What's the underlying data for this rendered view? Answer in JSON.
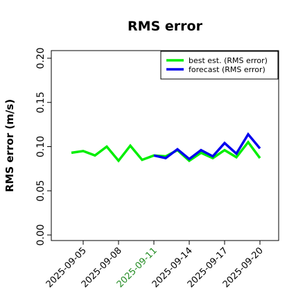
{
  "chart_data": {
    "type": "line",
    "title": "RMS error",
    "xlabel": "",
    "ylabel": "RMS error (m/s)",
    "ylim": [
      0,
      0.21
    ],
    "yticks": [
      "0.00",
      "0.05",
      "0.10",
      "0.15",
      "0.20"
    ],
    "xticks": [
      "2025-09-05",
      "2025-09-08",
      "2025-09-11",
      "2025-09-14",
      "2025-09-17",
      "2025-09-20"
    ],
    "highlighted_xtick": "2025-09-11",
    "highlight_color": "#228B22",
    "grid": false,
    "legend_position": "top-right",
    "series": [
      {
        "name": "best est. (RMS error)",
        "color": "#00ee00",
        "x": [
          "2025-09-04",
          "2025-09-05",
          "2025-09-06",
          "2025-09-07",
          "2025-09-08",
          "2025-09-09",
          "2025-09-10",
          "2025-09-11",
          "2025-09-12",
          "2025-09-13",
          "2025-09-14",
          "2025-09-15",
          "2025-09-16",
          "2025-09-17",
          "2025-09-18",
          "2025-09-19",
          "2025-09-20"
        ],
        "values": [
          0.093,
          0.095,
          0.09,
          0.1,
          0.084,
          0.101,
          0.085,
          0.09,
          0.089,
          0.096,
          0.084,
          0.093,
          0.087,
          0.096,
          0.088,
          0.105,
          0.087
        ]
      },
      {
        "name": "forecast (RMS error)",
        "color": "#0000ee",
        "x": [
          "2025-09-11",
          "2025-09-12",
          "2025-09-13",
          "2025-09-14",
          "2025-09-15",
          "2025-09-16",
          "2025-09-17",
          "2025-09-18",
          "2025-09-19",
          "2025-09-20"
        ],
        "values": [
          0.09,
          0.087,
          0.097,
          0.086,
          0.096,
          0.089,
          0.104,
          0.092,
          0.114,
          0.098
        ]
      }
    ]
  }
}
